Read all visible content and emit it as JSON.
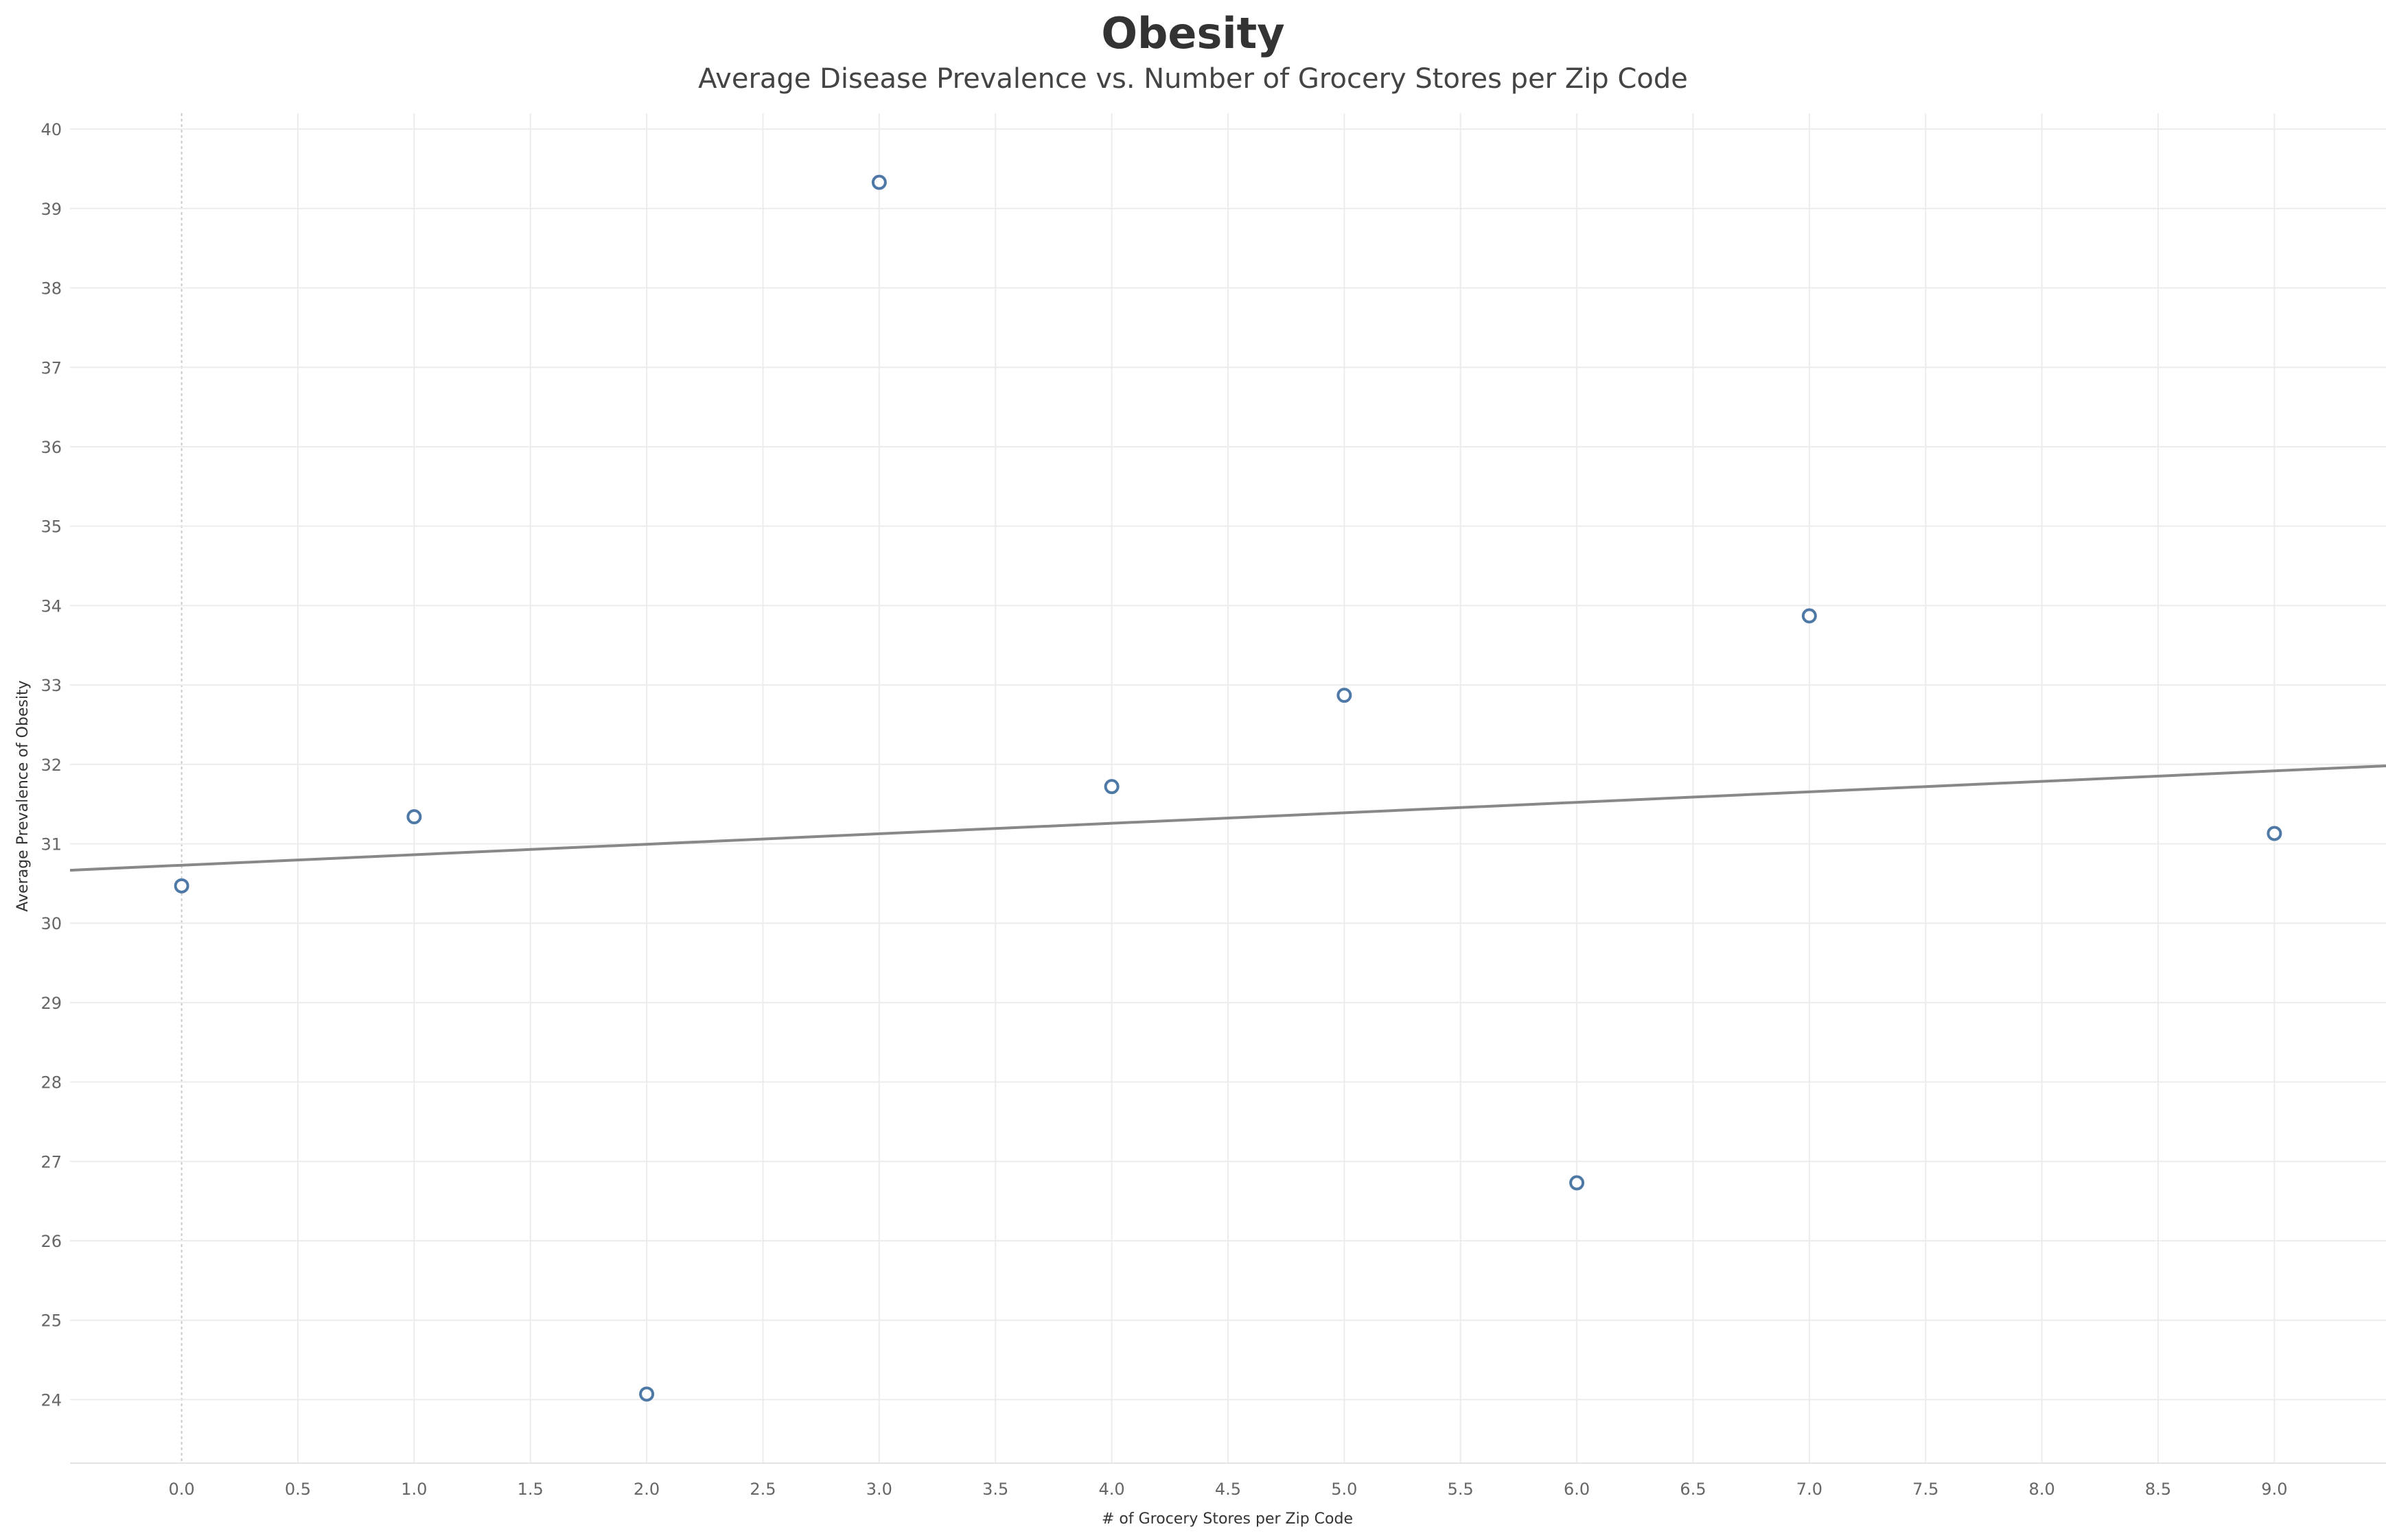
{
  "chart_data": {
    "type": "scatter",
    "title": "Obesity",
    "subtitle": "Average Disease Prevalence vs. Number of Grocery Stores per Zip Code",
    "xlabel": "# of Grocery Stores per Zip Code",
    "ylabel": "Average Prevalence of Obesity",
    "xlim": [
      -0.48,
      9.48
    ],
    "ylim": [
      23.2,
      40.2
    ],
    "x_ticks": [
      "0.0",
      "0.5",
      "1.0",
      "1.5",
      "2.0",
      "2.5",
      "3.0",
      "3.5",
      "4.0",
      "4.5",
      "5.0",
      "5.5",
      "6.0",
      "6.5",
      "7.0",
      "7.5",
      "8.0",
      "8.5",
      "9.0"
    ],
    "y_ticks": [
      "24",
      "25",
      "26",
      "27",
      "28",
      "29",
      "30",
      "31",
      "32",
      "33",
      "34",
      "35",
      "36",
      "37",
      "38",
      "39",
      "40"
    ],
    "grid": true,
    "points": [
      {
        "x": 0,
        "y": 30.47
      },
      {
        "x": 1,
        "y": 31.34
      },
      {
        "x": 2,
        "y": 24.07
      },
      {
        "x": 3,
        "y": 39.33
      },
      {
        "x": 4,
        "y": 31.72
      },
      {
        "x": 5,
        "y": 32.87
      },
      {
        "x": 6,
        "y": 26.73
      },
      {
        "x": 7,
        "y": 33.87
      },
      {
        "x": 9,
        "y": 31.13
      }
    ],
    "trend_line": {
      "intercept": 30.73,
      "slope": 0.132
    },
    "colors": {
      "marker": "#4e79a7",
      "trend": "#888888",
      "grid": "#ececec",
      "zero_line": "#c8c8c8"
    }
  }
}
